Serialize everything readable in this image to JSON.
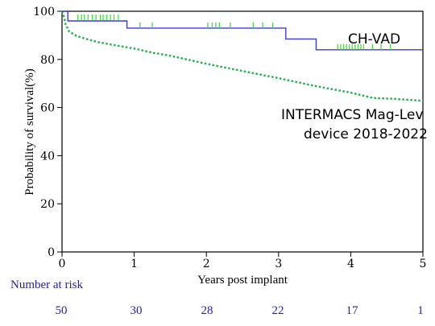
{
  "chart_data": {
    "type": "line",
    "xlabel": "Years post implant",
    "ylabel": "Probability of survival(%)",
    "xlim": [
      0,
      5
    ],
    "ylim": [
      0,
      100
    ],
    "x_ticks": [
      "0",
      "1",
      "2",
      "3",
      "4",
      "5"
    ],
    "y_ticks": [
      "0",
      "20",
      "40",
      "60",
      "80",
      "100"
    ],
    "grid": false,
    "series": [
      {
        "name": "CH-VAD",
        "style": "solid step",
        "color": "#3b3bd6",
        "x": [
          0,
          0.08,
          0.08,
          0.9,
          0.9,
          3.1,
          3.1,
          3.52,
          3.52,
          5.0
        ],
        "y": [
          100,
          100,
          96,
          96,
          93,
          93,
          88.5,
          88.5,
          84,
          84
        ]
      },
      {
        "name": "INTERMACS Mag-Lev device 2018-2022",
        "style": "dotted",
        "color": "#1db34a",
        "x": [
          0,
          0.02,
          0.05,
          0.1,
          0.2,
          0.3,
          0.5,
          0.75,
          1.0,
          1.25,
          1.5,
          2.0,
          2.5,
          3.0,
          3.5,
          4.0,
          4.3,
          4.6,
          5.0
        ],
        "y": [
          100,
          98.5,
          94.5,
          91.5,
          89.8,
          88.8,
          87.2,
          85.8,
          84.5,
          82.8,
          81.5,
          78.2,
          75.2,
          72.2,
          69.0,
          66.2,
          64.0,
          63.6,
          62.8
        ]
      }
    ],
    "censor_marks": {
      "series": "CH-VAD",
      "color": "#44dd44",
      "x": [
        0.22,
        0.27,
        0.31,
        0.36,
        0.42,
        0.47,
        0.53,
        0.57,
        0.62,
        0.67,
        0.72,
        0.78,
        1.08,
        1.25,
        2.02,
        2.08,
        2.13,
        2.18,
        2.33,
        2.65,
        2.78,
        2.92,
        3.82,
        3.86,
        3.9,
        3.94,
        3.98,
        4.02,
        4.06,
        4.1,
        4.14,
        4.18,
        4.3,
        4.42,
        4.55
      ],
      "y": [
        97.5,
        97.5,
        97.5,
        97.5,
        97.5,
        97.5,
        97.5,
        97.5,
        97.5,
        97.5,
        97.5,
        97.5,
        94.2,
        94.2,
        94.2,
        94.2,
        94.2,
        94.2,
        94.2,
        94.2,
        94.2,
        94.2,
        85.2,
        85.2,
        85.2,
        85.2,
        85.2,
        85.2,
        85.2,
        85.2,
        85.2,
        85.2,
        85.2,
        85.2,
        85.2
      ]
    },
    "annotations": [
      {
        "text": "CH-VAD"
      },
      {
        "text": "INTERMACS Mag-Lev"
      },
      {
        "text": "device 2018-2022"
      }
    ],
    "number_at_risk": {
      "label": "Number at  risk",
      "values": [
        "50",
        "30",
        "28",
        "22",
        "17",
        "1"
      ]
    }
  }
}
